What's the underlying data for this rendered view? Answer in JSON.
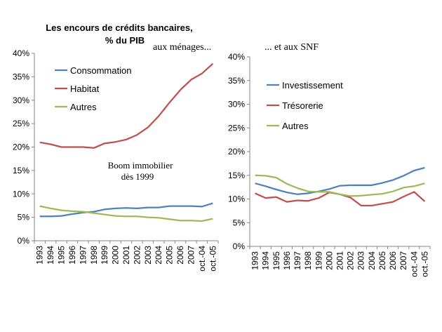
{
  "header": {
    "title_line1": "Les encours de crédits bancaires,",
    "title_line2": "% du PIB"
  },
  "chart_data": [
    {
      "type": "line",
      "subtitle": "aux ménages...",
      "annotation_line1": "Boom immobilier",
      "annotation_line2": "dès 1999",
      "categories": [
        "1993",
        "1994",
        "1995",
        "1996",
        "1997",
        "1998",
        "1999",
        "2000",
        "2001",
        "2002",
        "2003",
        "2004",
        "2005",
        "2006",
        "2007",
        "oct.-04",
        "oct.-05"
      ],
      "ylim": [
        0,
        40
      ],
      "yticks": [
        "0%",
        "5%",
        "10%",
        "15%",
        "20%",
        "25%",
        "30%",
        "35%",
        "40%"
      ],
      "legend_position": "top-left",
      "series": [
        {
          "name": "Consommation",
          "color": "#4f81bd",
          "values": [
            5.2,
            5.2,
            5.3,
            5.7,
            6.0,
            6.2,
            6.7,
            6.9,
            7.0,
            6.9,
            7.1,
            7.1,
            7.4,
            7.4,
            7.4,
            7.3,
            8.0
          ]
        },
        {
          "name": "Habitat",
          "color": "#c0504d",
          "values": [
            21.0,
            20.6,
            20.0,
            20.0,
            20.0,
            19.8,
            20.8,
            21.1,
            21.6,
            22.6,
            24.2,
            26.6,
            29.5,
            32.2,
            34.4,
            35.7,
            37.8
          ]
        },
        {
          "name": "Autres",
          "color": "#9bbb59",
          "values": [
            7.4,
            6.9,
            6.5,
            6.3,
            6.2,
            5.9,
            5.6,
            5.3,
            5.2,
            5.2,
            5.0,
            4.9,
            4.6,
            4.3,
            4.3,
            4.2,
            4.7
          ]
        }
      ]
    },
    {
      "type": "line",
      "subtitle": "... et aux SNF",
      "categories": [
        "1993",
        "1994",
        "1995",
        "1996",
        "1997",
        "1998",
        "1999",
        "2000",
        "2001",
        "2002",
        "2003",
        "2004",
        "2005",
        "2006",
        "2007",
        "oct.-04",
        "oct.-05"
      ],
      "ylim": [
        0,
        40
      ],
      "yticks": [
        "0%",
        "5%",
        "10%",
        "15%",
        "20%",
        "25%",
        "30%",
        "35%",
        "40%"
      ],
      "legend_position": "top-left",
      "series": [
        {
          "name": "Investissement",
          "color": "#4f81bd",
          "values": [
            13.3,
            12.7,
            12.0,
            11.4,
            11.0,
            11.2,
            11.6,
            12.1,
            12.8,
            12.9,
            12.9,
            12.9,
            13.4,
            14.0,
            14.9,
            16.0,
            16.6
          ]
        },
        {
          "name": "Trésorerie",
          "color": "#c0504d",
          "values": [
            11.2,
            10.2,
            10.4,
            9.4,
            9.7,
            9.6,
            10.2,
            11.4,
            11.0,
            10.3,
            8.6,
            8.6,
            9.0,
            9.4,
            10.5,
            11.5,
            9.5
          ]
        },
        {
          "name": "Autres",
          "color": "#9bbb59",
          "values": [
            15.0,
            14.9,
            14.5,
            13.2,
            12.3,
            11.6,
            11.5,
            11.5,
            11.0,
            10.6,
            10.7,
            10.9,
            11.1,
            11.6,
            12.4,
            12.7,
            13.3
          ]
        }
      ]
    }
  ]
}
